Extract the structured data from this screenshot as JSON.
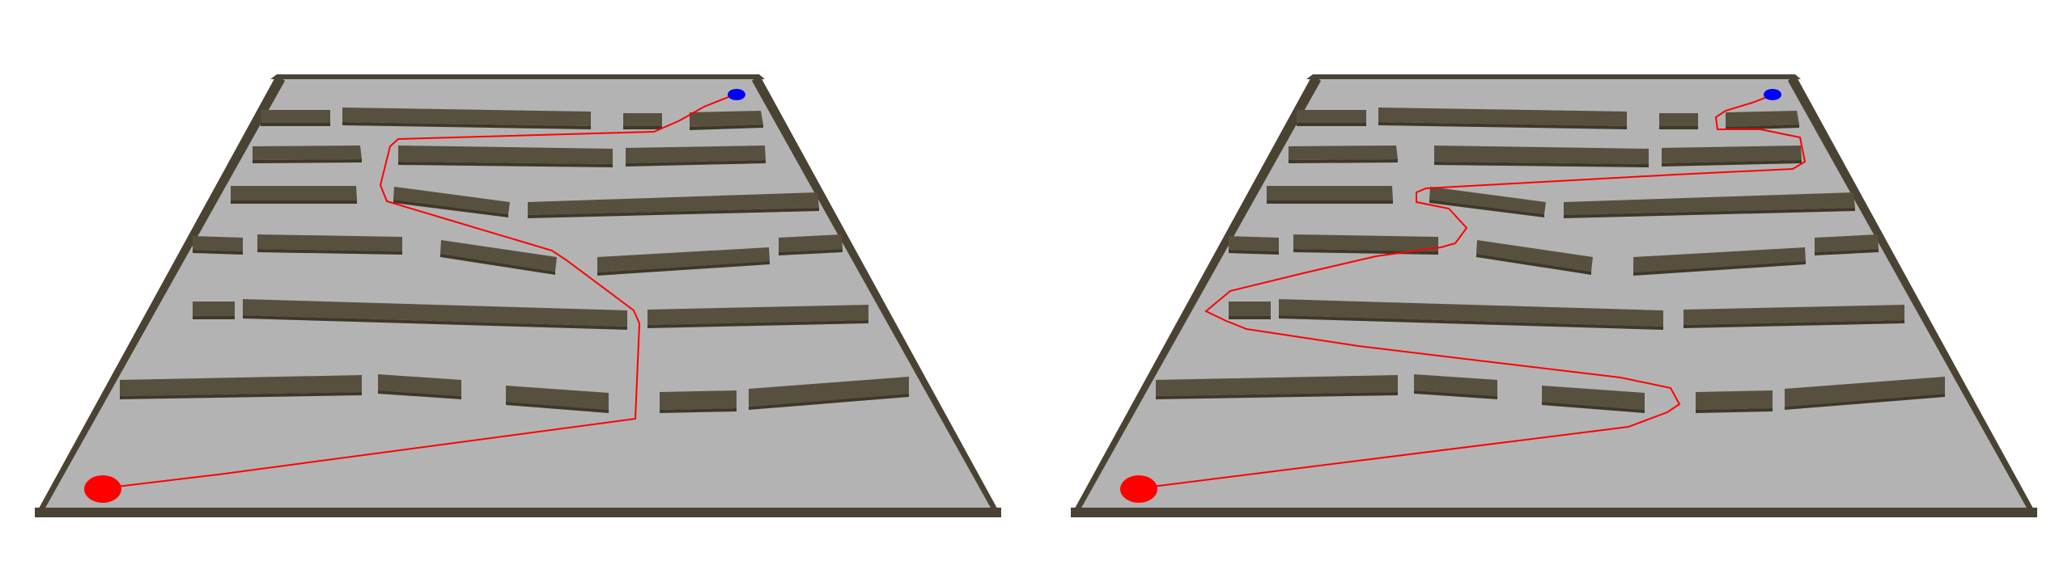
{
  "scene": {
    "description_free": true,
    "colors": {
      "background": "#ffffff",
      "floor": "#b3b3b3",
      "wall_top": "#58503f",
      "wall_face": "#3f3829",
      "path": "#ff0000",
      "start": "#ff0000",
      "goal": "#0000ff"
    },
    "panels": [
      {
        "id": "left",
        "path_label": "planned-path-short",
        "start_marker": "start-marker",
        "goal_marker": "goal-marker"
      },
      {
        "id": "right",
        "path_label": "planned-path-long",
        "start_marker": "start-marker",
        "goal_marker": "goal-marker"
      }
    ]
  }
}
